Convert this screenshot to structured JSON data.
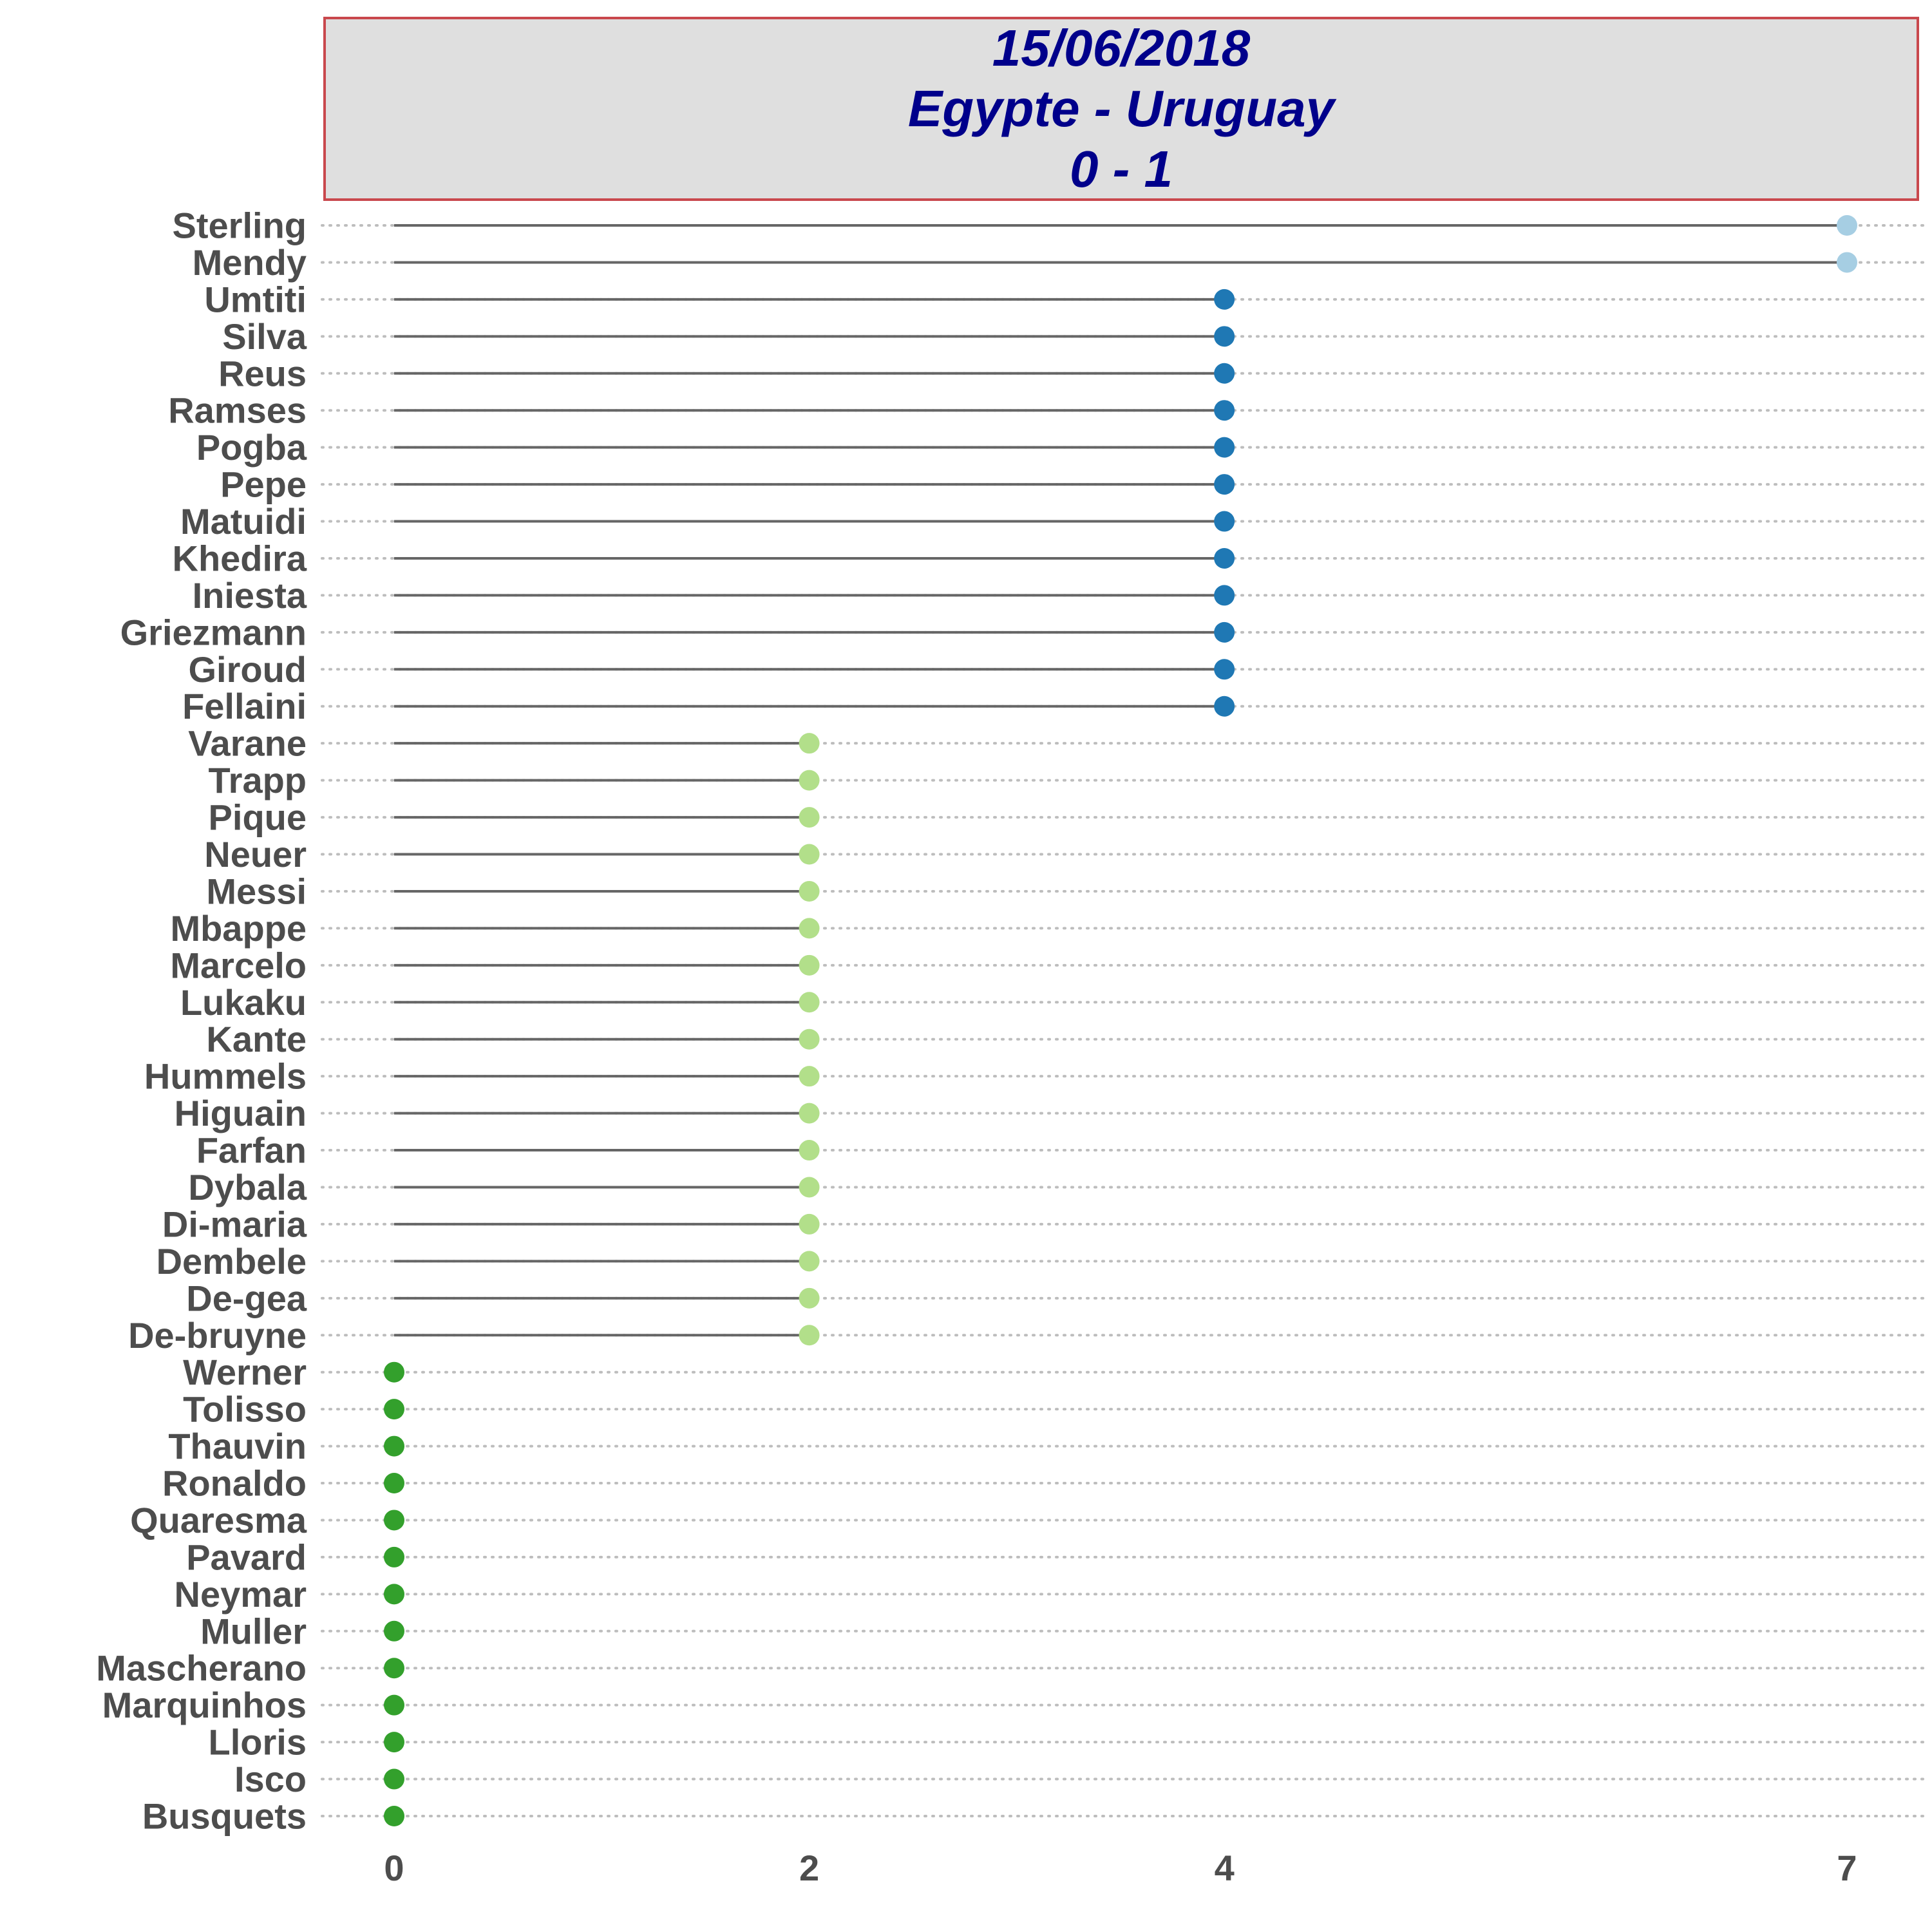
{
  "title_lines": [
    "15/06/2018",
    "Egypte - Uruguay",
    "0 - 1"
  ],
  "chart_data": {
    "type": "lollipop",
    "title": "15/06/2018 Egypte - Uruguay 0 - 1",
    "xlabel": "",
    "ylabel": "",
    "x_ticks": [
      0,
      2,
      4,
      7
    ],
    "xlim": [
      0,
      7
    ],
    "grid": "dotted horizontal",
    "colors": {
      "7": "#a6cee3",
      "4": "#1f78b4",
      "2": "#b2df8a",
      "0": "#33a02c",
      "stem": "#666666",
      "grid": "#bdbdbd"
    },
    "points": [
      {
        "name": "Sterling",
        "value": 7
      },
      {
        "name": "Mendy",
        "value": 7
      },
      {
        "name": "Umtiti",
        "value": 4
      },
      {
        "name": "Silva",
        "value": 4
      },
      {
        "name": "Reus",
        "value": 4
      },
      {
        "name": "Ramses",
        "value": 4
      },
      {
        "name": "Pogba",
        "value": 4
      },
      {
        "name": "Pepe",
        "value": 4
      },
      {
        "name": "Matuidi",
        "value": 4
      },
      {
        "name": "Khedira",
        "value": 4
      },
      {
        "name": "Iniesta",
        "value": 4
      },
      {
        "name": "Griezmann",
        "value": 4
      },
      {
        "name": "Giroud",
        "value": 4
      },
      {
        "name": "Fellaini",
        "value": 4
      },
      {
        "name": "Varane",
        "value": 2
      },
      {
        "name": "Trapp",
        "value": 2
      },
      {
        "name": "Pique",
        "value": 2
      },
      {
        "name": "Neuer",
        "value": 2
      },
      {
        "name": "Messi",
        "value": 2
      },
      {
        "name": "Mbappe",
        "value": 2
      },
      {
        "name": "Marcelo",
        "value": 2
      },
      {
        "name": "Lukaku",
        "value": 2
      },
      {
        "name": "Kante",
        "value": 2
      },
      {
        "name": "Hummels",
        "value": 2
      },
      {
        "name": "Higuain",
        "value": 2
      },
      {
        "name": "Farfan",
        "value": 2
      },
      {
        "name": "Dybala",
        "value": 2
      },
      {
        "name": "Di-maria",
        "value": 2
      },
      {
        "name": "Dembele",
        "value": 2
      },
      {
        "name": "De-gea",
        "value": 2
      },
      {
        "name": "De-bruyne",
        "value": 2
      },
      {
        "name": "Werner",
        "value": 0
      },
      {
        "name": "Tolisso",
        "value": 0
      },
      {
        "name": "Thauvin",
        "value": 0
      },
      {
        "name": "Ronaldo",
        "value": 0
      },
      {
        "name": "Quaresma",
        "value": 0
      },
      {
        "name": "Pavard",
        "value": 0
      },
      {
        "name": "Neymar",
        "value": 0
      },
      {
        "name": "Muller",
        "value": 0
      },
      {
        "name": "Mascherano",
        "value": 0
      },
      {
        "name": "Marquinhos",
        "value": 0
      },
      {
        "name": "Lloris",
        "value": 0
      },
      {
        "name": "Isco",
        "value": 0
      },
      {
        "name": "Busquets",
        "value": 0
      }
    ]
  }
}
